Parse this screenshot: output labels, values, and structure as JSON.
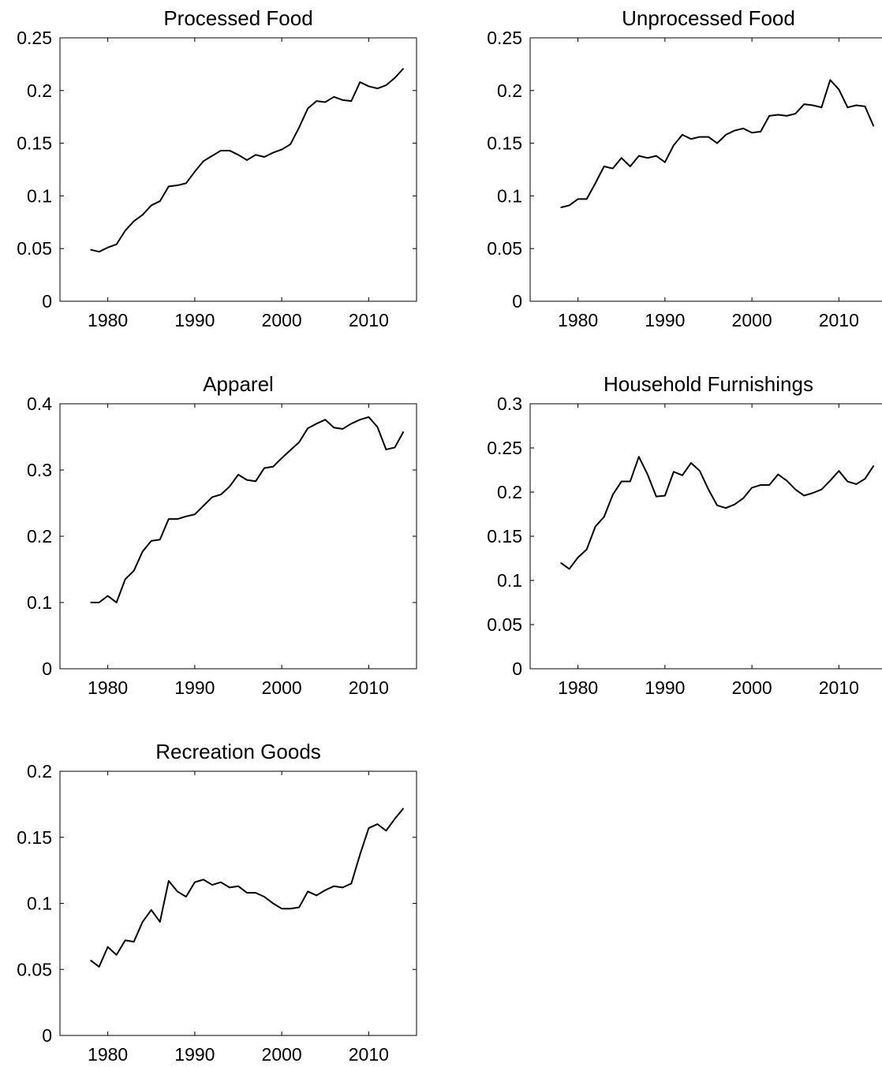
{
  "chart_data": [
    {
      "type": "line",
      "title": "Processed Food",
      "color": "#000000",
      "x": [
        1978,
        1979,
        1980,
        1981,
        1982,
        1983,
        1984,
        1985,
        1986,
        1987,
        1988,
        1989,
        1990,
        1991,
        1992,
        1993,
        1994,
        1995,
        1996,
        1997,
        1998,
        1999,
        2000,
        2001,
        2002,
        2003,
        2004,
        2005,
        2006,
        2007,
        2008,
        2009,
        2010,
        2011,
        2012,
        2013,
        2014
      ],
      "values": [
        0.049,
        0.047,
        0.051,
        0.054,
        0.067,
        0.076,
        0.082,
        0.091,
        0.095,
        0.109,
        0.11,
        0.112,
        0.123,
        0.133,
        0.138,
        0.143,
        0.143,
        0.139,
        0.134,
        0.139,
        0.137,
        0.141,
        0.144,
        0.149,
        0.165,
        0.183,
        0.19,
        0.189,
        0.194,
        0.191,
        0.19,
        0.208,
        0.204,
        0.202,
        0.205,
        0.212,
        0.221
      ],
      "xlim": [
        1974.5,
        2015.5
      ],
      "xticks": [
        1980,
        1990,
        2000,
        2010
      ],
      "ylim": [
        0,
        0.25
      ],
      "yticks": [
        0,
        0.05,
        0.1,
        0.15,
        0.2,
        0.25
      ]
    },
    {
      "type": "line",
      "title": "Unprocessed Food",
      "color": "#000000",
      "x": [
        1978,
        1979,
        1980,
        1981,
        1982,
        1983,
        1984,
        1985,
        1986,
        1987,
        1988,
        1989,
        1990,
        1991,
        1992,
        1993,
        1994,
        1995,
        1996,
        1997,
        1998,
        1999,
        2000,
        2001,
        2002,
        2003,
        2004,
        2005,
        2006,
        2007,
        2008,
        2009,
        2010,
        2011,
        2012,
        2013,
        2014
      ],
      "values": [
        0.089,
        0.091,
        0.097,
        0.097,
        0.112,
        0.128,
        0.126,
        0.136,
        0.128,
        0.138,
        0.136,
        0.138,
        0.132,
        0.148,
        0.158,
        0.154,
        0.156,
        0.156,
        0.15,
        0.158,
        0.162,
        0.164,
        0.16,
        0.161,
        0.176,
        0.177,
        0.176,
        0.178,
        0.187,
        0.186,
        0.184,
        0.21,
        0.201,
        0.184,
        0.186,
        0.185,
        0.166
      ],
      "xlim": [
        1974.5,
        2015.5
      ],
      "xticks": [
        1980,
        1990,
        2000,
        2010
      ],
      "ylim": [
        0,
        0.25
      ],
      "yticks": [
        0,
        0.05,
        0.1,
        0.15,
        0.2,
        0.25
      ]
    },
    {
      "type": "line",
      "title": "Apparel",
      "color": "#000000",
      "x": [
        1978,
        1979,
        1980,
        1981,
        1982,
        1983,
        1984,
        1985,
        1986,
        1987,
        1988,
        1989,
        1990,
        1991,
        1992,
        1993,
        1994,
        1995,
        1996,
        1997,
        1998,
        1999,
        2000,
        2001,
        2002,
        2003,
        2004,
        2005,
        2006,
        2007,
        2008,
        2009,
        2010,
        2011,
        2012,
        2013,
        2014
      ],
      "values": [
        0.1,
        0.1,
        0.11,
        0.1,
        0.135,
        0.148,
        0.177,
        0.193,
        0.195,
        0.226,
        0.226,
        0.23,
        0.233,
        0.246,
        0.259,
        0.263,
        0.275,
        0.293,
        0.285,
        0.283,
        0.303,
        0.305,
        0.318,
        0.33,
        0.342,
        0.363,
        0.37,
        0.376,
        0.364,
        0.362,
        0.37,
        0.376,
        0.38,
        0.365,
        0.331,
        0.334,
        0.358
      ],
      "xlim": [
        1974.5,
        2015.5
      ],
      "xticks": [
        1980,
        1990,
        2000,
        2010
      ],
      "ylim": [
        0,
        0.4
      ],
      "yticks": [
        0,
        0.1,
        0.2,
        0.3,
        0.4
      ]
    },
    {
      "type": "line",
      "title": "Household Furnishings",
      "color": "#000000",
      "x": [
        1978,
        1979,
        1980,
        1981,
        1982,
        1983,
        1984,
        1985,
        1986,
        1987,
        1988,
        1989,
        1990,
        1991,
        1992,
        1993,
        1994,
        1995,
        1996,
        1997,
        1998,
        1999,
        2000,
        2001,
        2002,
        2003,
        2004,
        2005,
        2006,
        2007,
        2008,
        2009,
        2010,
        2011,
        2012,
        2013,
        2014
      ],
      "values": [
        0.12,
        0.113,
        0.126,
        0.135,
        0.161,
        0.172,
        0.197,
        0.212,
        0.212,
        0.24,
        0.22,
        0.195,
        0.196,
        0.223,
        0.219,
        0.233,
        0.224,
        0.203,
        0.185,
        0.182,
        0.186,
        0.193,
        0.205,
        0.208,
        0.208,
        0.22,
        0.213,
        0.203,
        0.196,
        0.199,
        0.203,
        0.213,
        0.224,
        0.212,
        0.209,
        0.215,
        0.23
      ],
      "xlim": [
        1974.5,
        2015.5
      ],
      "xticks": [
        1980,
        1990,
        2000,
        2010
      ],
      "ylim": [
        0,
        0.3
      ],
      "yticks": [
        0,
        0.05,
        0.1,
        0.15,
        0.2,
        0.25,
        0.3
      ]
    },
    {
      "type": "line",
      "title": "Recreation Goods",
      "color": "#000000",
      "x": [
        1978,
        1979,
        1980,
        1981,
        1982,
        1983,
        1984,
        1985,
        1986,
        1987,
        1988,
        1989,
        1990,
        1991,
        1992,
        1993,
        1994,
        1995,
        1996,
        1997,
        1998,
        1999,
        2000,
        2001,
        2002,
        2003,
        2004,
        2005,
        2006,
        2007,
        2008,
        2009,
        2010,
        2011,
        2012,
        2013,
        2014
      ],
      "values": [
        0.057,
        0.052,
        0.067,
        0.061,
        0.072,
        0.071,
        0.086,
        0.095,
        0.086,
        0.117,
        0.109,
        0.105,
        0.116,
        0.118,
        0.114,
        0.116,
        0.112,
        0.113,
        0.108,
        0.108,
        0.105,
        0.1,
        0.096,
        0.096,
        0.097,
        0.109,
        0.106,
        0.11,
        0.113,
        0.112,
        0.115,
        0.137,
        0.157,
        0.16,
        0.155,
        0.164,
        0.172
      ],
      "xlim": [
        1974.5,
        2015.5
      ],
      "xticks": [
        1980,
        1990,
        2000,
        2010
      ],
      "ylim": [
        0,
        0.2
      ],
      "yticks": [
        0,
        0.05,
        0.1,
        0.15,
        0.2
      ]
    }
  ]
}
